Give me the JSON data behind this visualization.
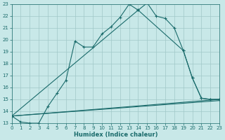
{
  "xlabel": "Humidex (Indice chaleur)",
  "xlim": [
    0,
    23
  ],
  "ylim": [
    13,
    23
  ],
  "xticks": [
    0,
    1,
    2,
    3,
    4,
    5,
    6,
    7,
    8,
    9,
    10,
    11,
    12,
    13,
    14,
    15,
    16,
    17,
    18,
    19,
    20,
    21,
    22,
    23
  ],
  "yticks": [
    13,
    14,
    15,
    16,
    17,
    18,
    19,
    20,
    21,
    22,
    23
  ],
  "background_color": "#c8e8e8",
  "grid_color": "#a0c8c8",
  "line_color": "#1a6b6b",
  "line1_x": [
    0,
    1,
    2,
    3,
    4,
    5,
    6,
    7,
    8,
    9,
    10,
    11,
    12,
    13,
    14,
    15,
    16,
    17,
    18,
    19,
    20,
    21,
    22,
    23
  ],
  "line1_y": [
    13.6,
    13.1,
    13.0,
    13.0,
    14.4,
    15.5,
    16.6,
    19.9,
    19.4,
    19.4,
    20.5,
    21.1,
    21.9,
    23.0,
    22.5,
    23.1,
    22.0,
    21.8,
    21.0,
    19.1,
    16.8,
    15.1,
    15.0,
    15.0
  ],
  "line2_x": [
    0,
    14,
    19,
    20,
    21,
    22,
    23
  ],
  "line2_y": [
    13.6,
    22.5,
    19.1,
    16.8,
    15.1,
    15.0,
    15.0
  ],
  "line3_x": [
    0,
    23
  ],
  "line3_y": [
    13.6,
    15.0
  ],
  "line4_x": [
    0,
    23
  ],
  "line4_y": [
    13.6,
    14.9
  ]
}
